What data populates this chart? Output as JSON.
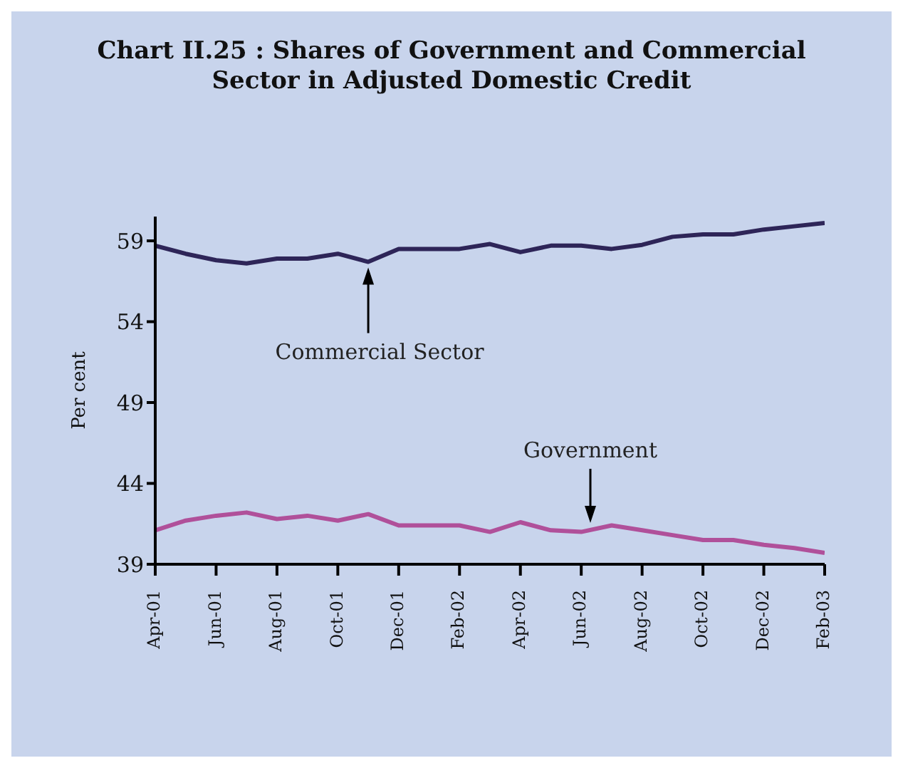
{
  "chart_data": {
    "type": "line",
    "title": "Chart II.25 : Shares of Government and Commercial Sector in Adjusted Domestic Credit",
    "ylabel": "Per cent",
    "categories": [
      "Apr-01",
      null,
      "Jun-01",
      null,
      "Aug-01",
      null,
      "Oct-01",
      null,
      "Dec-01",
      null,
      "Feb-02",
      null,
      "Apr-02",
      null,
      "Jun-02",
      null,
      "Aug-02",
      null,
      "Oct-02",
      null,
      "Dec-02",
      null,
      "Feb-03"
    ],
    "series": [
      {
        "name": "Commercial Sector",
        "color": "#2e2558",
        "values": [
          58.7,
          58.2,
          57.8,
          57.6,
          57.9,
          57.9,
          58.2,
          57.7,
          58.5,
          58.5,
          58.5,
          58.8,
          58.3,
          58.7,
          58.7,
          58.5,
          58.75,
          59.25,
          59.4,
          59.4,
          59.7,
          59.9,
          60.1
        ]
      },
      {
        "name": "Government",
        "color": "#b0509a",
        "values": [
          41.1,
          41.7,
          42.0,
          42.2,
          41.8,
          42.0,
          41.7,
          42.1,
          41.4,
          41.4,
          41.4,
          41.0,
          41.6,
          41.1,
          41.0,
          41.4,
          41.1,
          40.8,
          40.5,
          40.5,
          40.2,
          40.0,
          39.7
        ]
      }
    ],
    "ylim": [
      39,
      60.5
    ],
    "yticks": [
      39,
      44,
      49,
      54,
      59
    ],
    "grid": false,
    "legend": false,
    "marker": "none",
    "line_style": "solid"
  }
}
